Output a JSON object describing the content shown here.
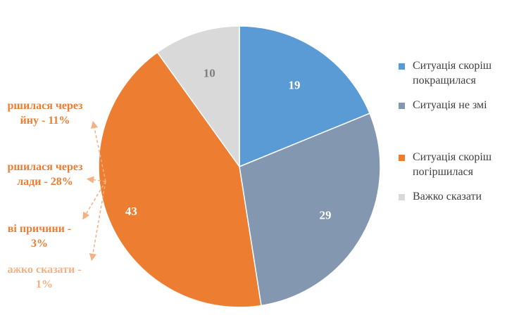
{
  "chart_data": {
    "type": "pie",
    "categories": [
      "Ситуація скоріше покращилася",
      "Ситуація не змінилася",
      "Ситуація скоріше погіршилася",
      "Важко сказати"
    ],
    "values": [
      19,
      29,
      43,
      10
    ],
    "value_labels": [
      "19",
      "29",
      "43",
      "10"
    ],
    "colors": [
      "#5B9BD5",
      "#8497B0",
      "#ED7D31",
      "#D9D9D9"
    ],
    "label_colors": [
      "#ffffff",
      "#ffffff",
      "#ffffff",
      "#7f7f7f"
    ],
    "legend": {
      "position": "right",
      "items": [
        {
          "line1": "Ситуація скоріш",
          "line2": "покращилася",
          "color": "#5B9BD5"
        },
        {
          "line1": "Ситуація не змі",
          "line2": "",
          "color": "#8497B0"
        },
        {
          "line1": "Ситуація скоріш",
          "line2": "погіршилася",
          "color": "#ED7D31"
        },
        {
          "line1": "Важко сказати",
          "line2": "",
          "color": "#D9D9D9"
        }
      ]
    },
    "annotations": [
      {
        "line1": "ршилася через",
        "line2": "йну - 11%",
        "color": "#ED7D31"
      },
      {
        "line1": "ршилася через",
        "line2": "лади - 28%",
        "color": "#ED7D31"
      },
      {
        "line1": "ві причини -",
        "line2": "3%",
        "color": "#ED7D31"
      },
      {
        "line1": "ажко сказати -",
        "line2": "1%",
        "color": "#F4B183"
      }
    ],
    "arrow_color": "#F4B183"
  }
}
